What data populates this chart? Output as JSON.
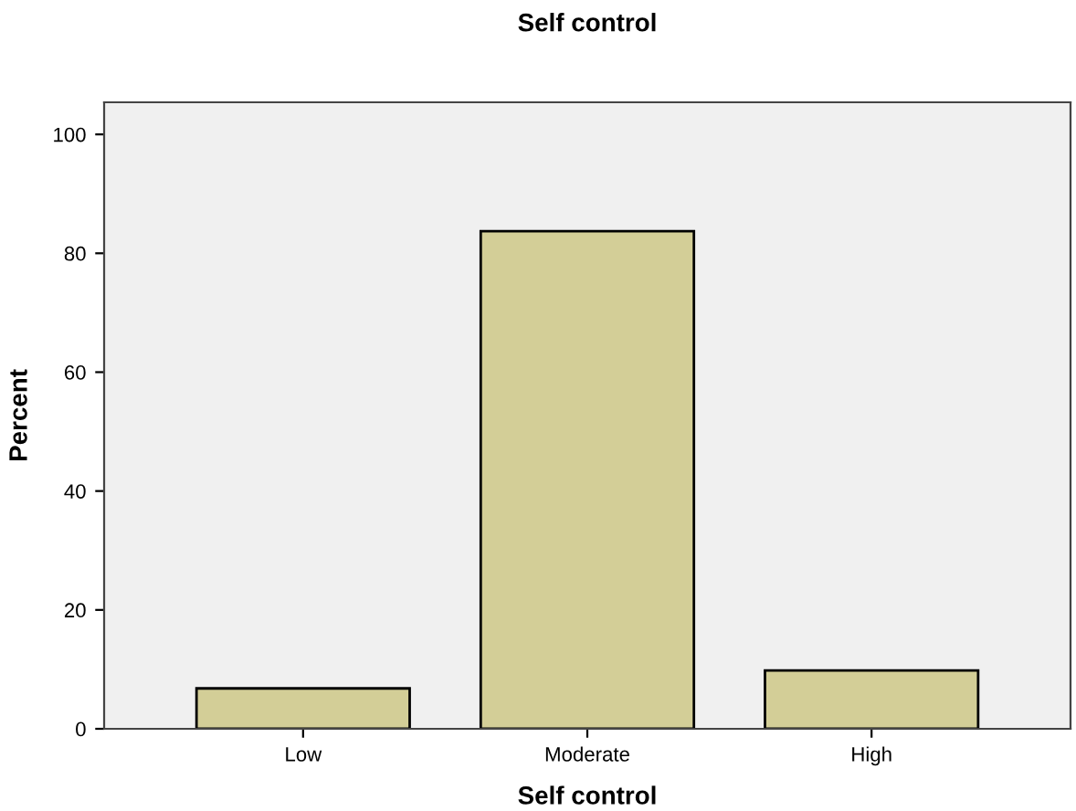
{
  "chart_data": {
    "type": "bar",
    "title": "Self control",
    "xlabel": "Self control",
    "ylabel": "Percent",
    "categories": [
      "Low",
      "Moderate",
      "High"
    ],
    "values": [
      6.8,
      83.7,
      9.8
    ],
    "color": "#d3ce97",
    "ylim": [
      0,
      105.4
    ],
    "yticks": [
      0,
      20,
      40,
      60,
      80,
      100
    ],
    "grid": false
  }
}
